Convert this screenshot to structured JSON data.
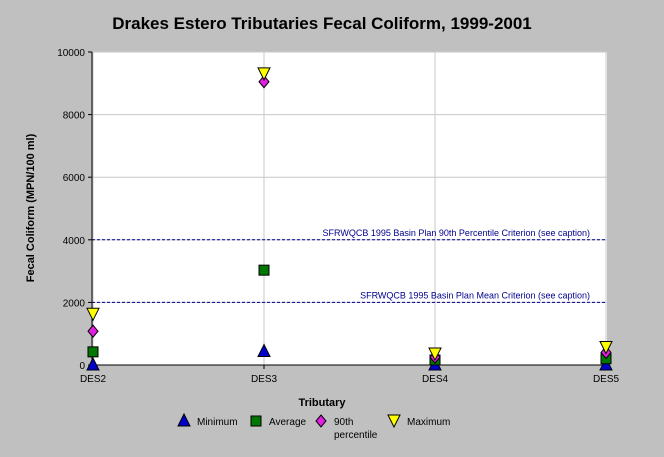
{
  "chart_data": {
    "type": "scatter",
    "title": "Drakes Estero Tributaries Fecal Coliform, 1999-2001",
    "xlabel": "Tributary",
    "ylabel": "Fecal Coliform (MPN/100 ml)",
    "categories": [
      "DES2",
      "DES3",
      "DES4",
      "DES5"
    ],
    "ylim": [
      0,
      10000
    ],
    "yticks": [
      "0",
      "2000",
      "4000",
      "6000",
      "8000",
      "10000"
    ],
    "grid": true,
    "legend_position": "bottom",
    "series": [
      {
        "name": "Minimum",
        "marker": "triangle-up",
        "color": "#0000cc",
        "values": [
          0,
          430,
          0,
          0
        ]
      },
      {
        "name": "Average",
        "marker": "square",
        "color": "#007700",
        "values": [
          420,
          3030,
          160,
          200
        ]
      },
      {
        "name": "90th percentile",
        "marker": "diamond",
        "color": "#e020e0",
        "values": [
          1080,
          9050,
          250,
          400
        ]
      },
      {
        "name": "Maximum",
        "marker": "triangle-down",
        "color": "#ffff00",
        "values": [
          1620,
          9300,
          350,
          560
        ]
      }
    ],
    "reference_lines": [
      {
        "label": "SFRWQCB 1995 Basin Plan 90th Percentile Criterion (see caption)",
        "value": 4000,
        "color": "#00008b"
      },
      {
        "label": "SFRWQCB 1995 Basin Plan Mean Criterion (see caption)",
        "value": 2000,
        "color": "#00008b"
      }
    ]
  }
}
